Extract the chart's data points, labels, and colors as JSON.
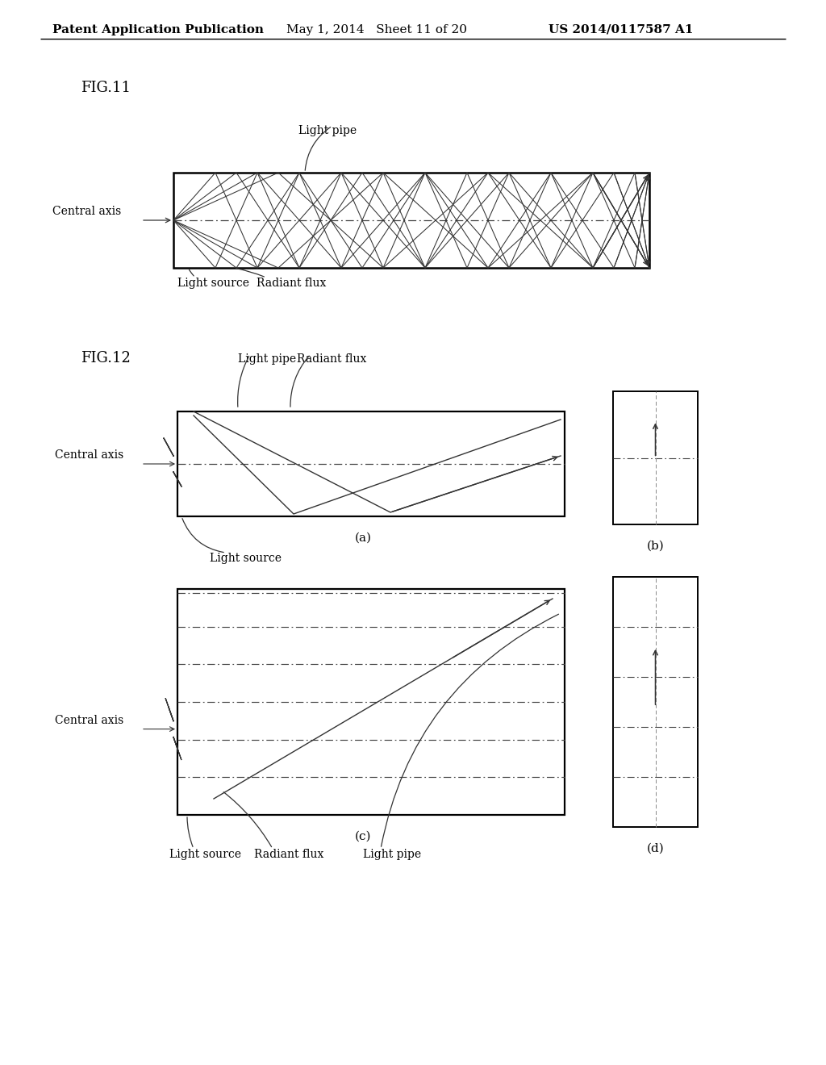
{
  "header_left": "Patent Application Publication",
  "header_mid": "May 1, 2014   Sheet 11 of 20",
  "header_right": "US 2014/0117587 A1",
  "fig11_label": "FIG.11",
  "fig12_label": "FIG.12",
  "bg_color": "#ffffff",
  "line_color": "#000000",
  "text_color": "#000000",
  "gray": "#444444"
}
